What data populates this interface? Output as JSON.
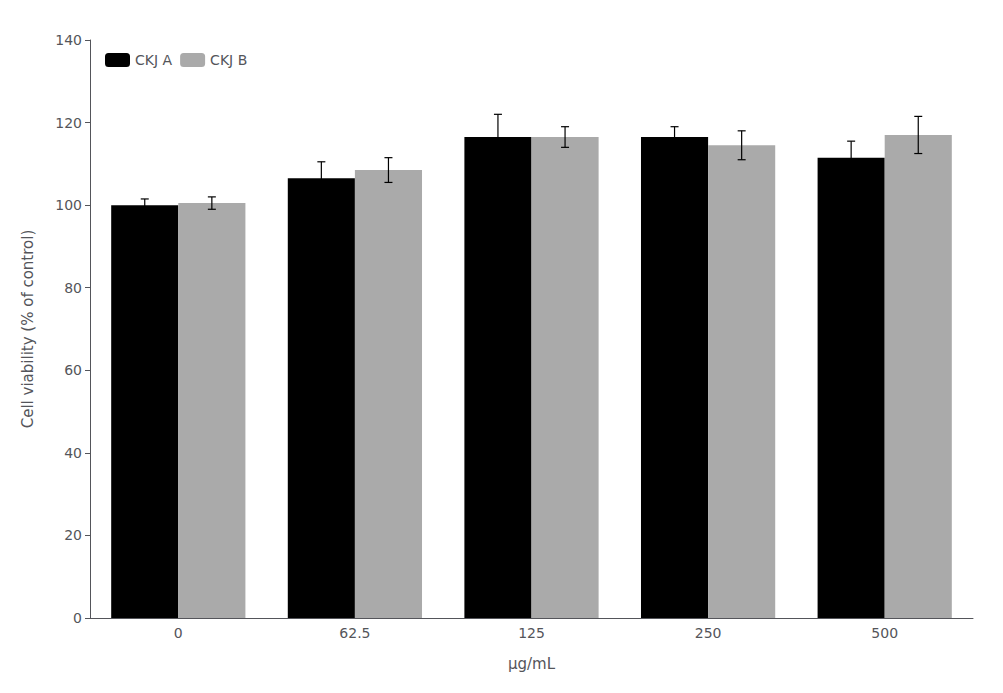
{
  "chart_data": {
    "type": "bar",
    "categories": [
      "0",
      "62.5",
      "125",
      "250",
      "500"
    ],
    "series": [
      {
        "name": "CKJ A",
        "color": "#000000",
        "values": [
          100.0,
          106.5,
          116.5,
          116.5,
          111.5
        ],
        "errors": [
          1.5,
          4.0,
          5.5,
          2.5,
          4.0
        ]
      },
      {
        "name": "CKJ B",
        "color": "#aaaaaa",
        "values": [
          100.5,
          108.5,
          116.5,
          114.5,
          117.0
        ],
        "errors": [
          1.5,
          3.0,
          2.5,
          3.5,
          4.5
        ]
      }
    ],
    "xlabel": "μg/mL",
    "ylabel": "Cell viability (% of control)",
    "ylim": [
      0,
      140
    ],
    "yticks": [
      0,
      20,
      40,
      60,
      80,
      100,
      120,
      140
    ],
    "grid": false,
    "legend": "upper left"
  }
}
